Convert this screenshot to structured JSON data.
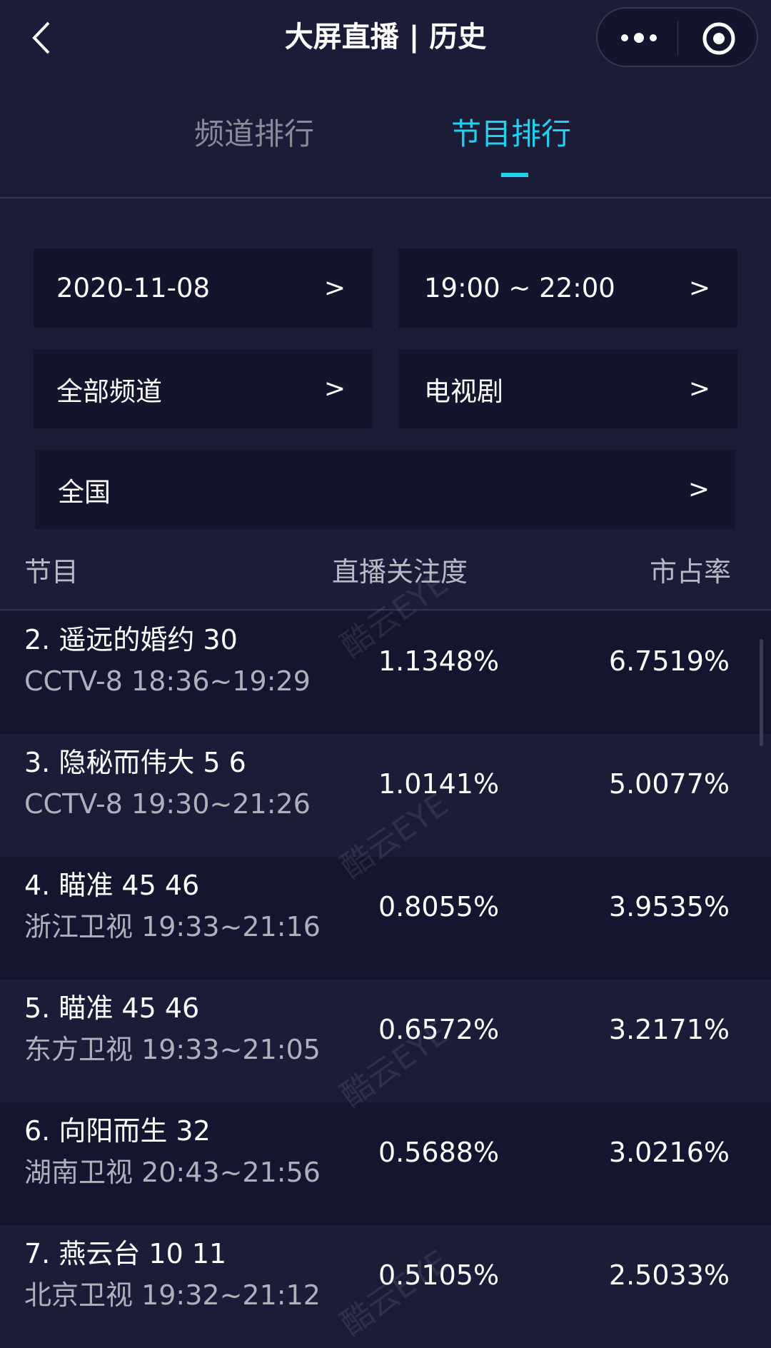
{
  "header": {
    "title": "大屏直播 | 历史",
    "back_icon": "chevron-left-icon",
    "more_icon": "more-dots-icon",
    "close_icon": "target-circle-icon"
  },
  "tabs": [
    {
      "label": "频道排行",
      "active": false
    },
    {
      "label": "节目排行",
      "active": true
    }
  ],
  "accent_color": "#1ed2f0",
  "filters": {
    "date": "2020-11-08",
    "time": "19:00 ~ 22:00",
    "channel": "全部频道",
    "genre": "电视剧",
    "region": "全国",
    "arrow": ">"
  },
  "table": {
    "columns": [
      "节目",
      "直播关注度",
      "市占率"
    ],
    "rows": [
      {
        "name": "2. 遥远的婚约 30",
        "sub": "CCTV-8 18:36~19:29",
        "attention": "1.1348%",
        "share": "6.7519%"
      },
      {
        "name": "3. 隐秘而伟大 5 6",
        "sub": "CCTV-8 19:30~21:26",
        "attention": "1.0141%",
        "share": "5.0077%"
      },
      {
        "name": "4. 瞄准 45 46",
        "sub": "浙江卫视 19:33~21:16",
        "attention": "0.8055%",
        "share": "3.9535%"
      },
      {
        "name": "5. 瞄准 45 46",
        "sub": "东方卫视 19:33~21:05",
        "attention": "0.6572%",
        "share": "3.2171%"
      },
      {
        "name": "6. 向阳而生 32",
        "sub": "湖南卫视 20:43~21:56",
        "attention": "0.5688%",
        "share": "3.0216%"
      },
      {
        "name": "7. 燕云台 10 11",
        "sub": "北京卫视 19:32~21:12",
        "attention": "0.5105%",
        "share": "2.5033%"
      }
    ]
  },
  "watermark": "酷云EYE"
}
